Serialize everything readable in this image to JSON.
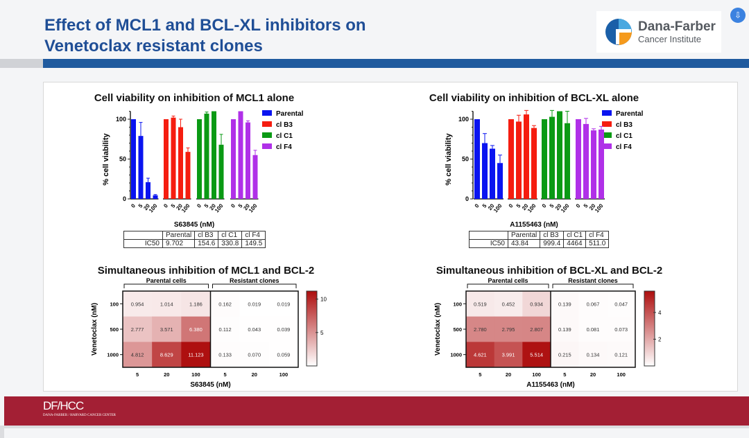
{
  "slide": {
    "title_line1": "Effect of MCL1 and BCL-XL inhibitors on",
    "title_line2": "Venetoclax resistant clones",
    "logo_name": "Dana-Farber",
    "logo_sub": "Cancer Institute",
    "footer_main": "DF/HCC",
    "footer_sub": "DANA-FARBER / HARVARD CANCER CENTER",
    "colors": {
      "title": "#1f4e96",
      "band": "#1f5a9e",
      "footer": "#a31f34"
    }
  },
  "chart_data": [
    {
      "type": "bar",
      "title": "Cell viability on inhibition of MCL1 alone",
      "xlabel": "S63845 (nM)",
      "ylabel": "% cell viability",
      "ylim": [
        0,
        110
      ],
      "yticks": [
        0,
        50,
        100
      ],
      "categories": [
        "0",
        "5",
        "20",
        "100"
      ],
      "legend": "right",
      "series": [
        {
          "name": "Parental",
          "color": "#0a14f0",
          "values": [
            100,
            79,
            21,
            4.5
          ],
          "errors": [
            0,
            17,
            5,
            1
          ]
        },
        {
          "name": "cl B3",
          "color": "#f51d10",
          "values": [
            100,
            102,
            90,
            59
          ],
          "errors": [
            0,
            2,
            10,
            5
          ]
        },
        {
          "name": "cl C1",
          "color": "#0a9a14",
          "values": [
            100,
            107,
            110,
            68
          ],
          "errors": [
            0,
            2,
            0,
            13
          ]
        },
        {
          "name": "cl F4",
          "color": "#b030e8",
          "values": [
            100,
            110,
            96,
            55
          ],
          "errors": [
            0,
            0,
            2,
            6
          ]
        }
      ],
      "ic50": {
        "row_label": "IC50",
        "headers": [
          "Parental",
          "cl B3",
          "cl C1",
          "cl F4"
        ],
        "values": [
          "9.702",
          "154.6",
          "330.8",
          "149.5"
        ]
      }
    },
    {
      "type": "bar",
      "title": "Cell viability on inhibition of BCL-XL alone",
      "xlabel": "A1155463 (nM)",
      "ylabel": "% cell viability",
      "ylim": [
        0,
        110
      ],
      "yticks": [
        0,
        50,
        100
      ],
      "categories": [
        "0",
        "5",
        "20",
        "100"
      ],
      "legend": "right",
      "series": [
        {
          "name": "Parental",
          "color": "#0a14f0",
          "values": [
            100,
            70,
            63,
            45
          ],
          "errors": [
            0,
            12,
            4,
            10
          ]
        },
        {
          "name": "cl B3",
          "color": "#f51d10",
          "values": [
            100,
            97,
            106,
            89
          ],
          "errors": [
            0,
            8,
            5,
            3
          ]
        },
        {
          "name": "cl C1",
          "color": "#0a9a14",
          "values": [
            100,
            103,
            110,
            95
          ],
          "errors": [
            0,
            8,
            0,
            15
          ]
        },
        {
          "name": "cl F4",
          "color": "#b030e8",
          "values": [
            100,
            94,
            86,
            87
          ],
          "errors": [
            0,
            7,
            2,
            4
          ]
        }
      ],
      "ic50": {
        "row_label": "IC50",
        "headers": [
          "Parental",
          "cl B3",
          "cl C1",
          "cl F4"
        ],
        "values": [
          "43.84",
          "999.4",
          "4464",
          "511.0"
        ]
      }
    },
    {
      "type": "heatmap",
      "title": "Simultaneous inhibition of MCL1 and BCL-2",
      "xlabel": "S63845 (nM)",
      "ylabel": "Venetoclax (nM)",
      "groups": [
        "Parental cells",
        "Resistant clones"
      ],
      "x": [
        "5",
        "20",
        "100",
        "5",
        "20",
        "100"
      ],
      "y": [
        "100",
        "500",
        "1000"
      ],
      "values": [
        [
          0.954,
          1.014,
          1.186,
          0.162,
          0.019,
          0.019
        ],
        [
          2.777,
          3.571,
          6.38,
          0.112,
          0.043,
          0.039
        ],
        [
          4.812,
          8.629,
          11.123,
          0.133,
          0.07,
          0.059
        ]
      ],
      "labels": [
        [
          "0.954",
          "1.014",
          "1.186",
          "0.162",
          "0.019",
          "0.019"
        ],
        [
          "2.777",
          "3.571",
          "6.380",
          "0.112",
          "0.043",
          "0.039"
        ],
        [
          "4.812",
          "8.629",
          "11.123",
          "0.133",
          "0.070",
          "0.059"
        ]
      ],
      "colorbar": {
        "min": 0,
        "max": 11.2,
        "ticks": [
          5,
          10
        ],
        "low": "#ffffff",
        "high": "#ad0e0e"
      }
    },
    {
      "type": "heatmap",
      "title": "Simultaneous inhibition of BCL-XL and BCL-2",
      "xlabel": "A1155463 (nM)",
      "ylabel": "Venetoclax (nM)",
      "groups": [
        "Parental cells",
        "Resistant clones"
      ],
      "x": [
        "5",
        "20",
        "100",
        "5",
        "20",
        "100"
      ],
      "y": [
        "100",
        "500",
        "1000"
      ],
      "values": [
        [
          0.519,
          0.452,
          0.934,
          0.139,
          0.067,
          0.047
        ],
        [
          2.78,
          2.795,
          2.807,
          0.139,
          0.081,
          0.073
        ],
        [
          4.621,
          3.991,
          5.514,
          0.215,
          0.134,
          0.121
        ]
      ],
      "labels": [
        [
          "0.519",
          "0.452",
          "0.934",
          "0.139",
          "0.067",
          "0.047"
        ],
        [
          "2.780",
          "2.795",
          "2.807",
          "0.139",
          "0.081",
          "0.073"
        ],
        [
          "4.621",
          "3.991",
          "5.514",
          "0.215",
          "0.134",
          "0.121"
        ]
      ],
      "colorbar": {
        "min": 0,
        "max": 5.6,
        "ticks": [
          2,
          4
        ],
        "low": "#ffffff",
        "high": "#ad0e0e"
      }
    }
  ]
}
